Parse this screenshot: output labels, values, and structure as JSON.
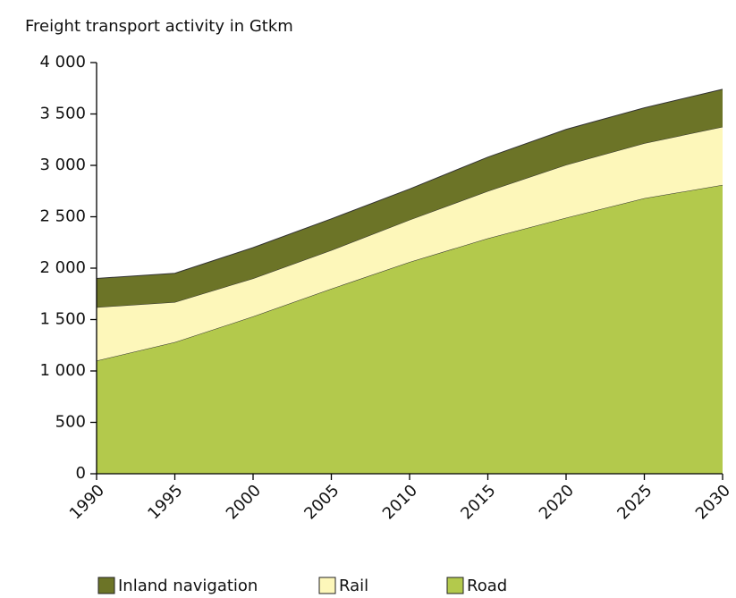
{
  "chart_data": {
    "type": "stacked_area",
    "title": "Freight transport activity in Gtkm",
    "categories": [
      "1990",
      "1995",
      "2000",
      "2005",
      "2010",
      "2015",
      "2020",
      "2025",
      "2030"
    ],
    "series": [
      {
        "name": "Road",
        "color": "#b3c94c",
        "values": [
          1100,
          1280,
          1530,
          1800,
          2060,
          2290,
          2490,
          2680,
          2810
        ]
      },
      {
        "name": "Rail",
        "color": "#fdf7ba",
        "values": [
          520,
          390,
          370,
          375,
          410,
          460,
          515,
          535,
          565
        ]
      },
      {
        "name": "Inland navigation",
        "color": "#6c7427",
        "values": [
          280,
          280,
          300,
          305,
          300,
          330,
          345,
          345,
          365
        ]
      }
    ],
    "ylim": [
      0,
      4000
    ],
    "yticks": [
      0,
      500,
      {
        "value": 1000,
        "label": "1 000"
      },
      {
        "value": 1500,
        "label": "1 500"
      },
      {
        "value": 2000,
        "label": "2 000"
      },
      {
        "value": 2500,
        "label": "2 500"
      },
      {
        "value": 3000,
        "label": "3 000"
      },
      {
        "value": 3500,
        "label": "3 500"
      },
      {
        "value": 4000,
        "label": "4 000"
      }
    ],
    "grid": false
  }
}
